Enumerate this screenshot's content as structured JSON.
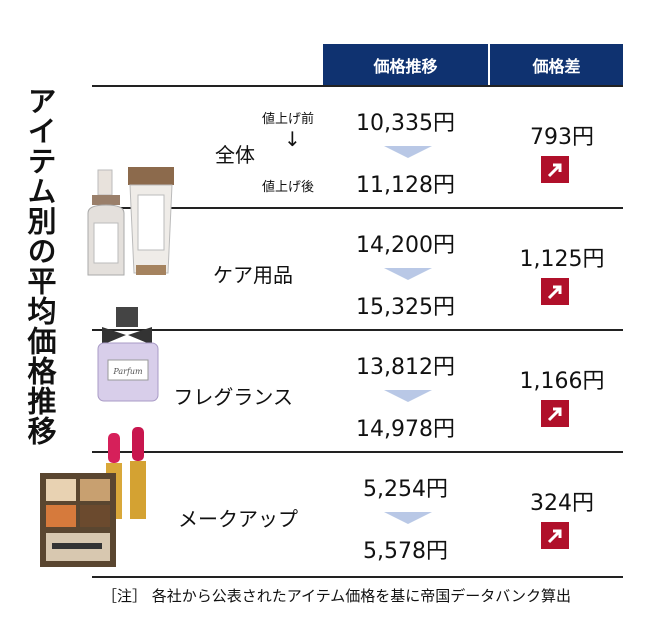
{
  "title": "アイテム別の平均価格推移",
  "header": {
    "price_trend": "価格推移",
    "price_diff": "価格差"
  },
  "legend": {
    "before": "値上げ前",
    "after": "値上げ後",
    "arrow": "↓"
  },
  "rows": [
    {
      "label": "全体",
      "before": "10,335円",
      "after": "11,128円",
      "diff": "793円",
      "direction": "up"
    },
    {
      "label": "ケア用品",
      "before": "14,200円",
      "after": "15,325円",
      "diff": "1,125円",
      "direction": "up"
    },
    {
      "label": "フレグランス",
      "before": "13,812円",
      "after": "14,978円",
      "diff": "1,166円",
      "direction": "up"
    },
    {
      "label": "メークアップ",
      "before": "5,254円",
      "after": "5,578円",
      "diff": "324円",
      "direction": "up"
    }
  ],
  "note": "［注］ 各社から公表されたアイテム価格を基に帝国データバンク算出",
  "colors": {
    "header": "#0f3270",
    "up_badge": "#b0102a",
    "chevron": "#b9c8e6"
  },
  "images": {
    "perfume_label": "Parfum"
  }
}
